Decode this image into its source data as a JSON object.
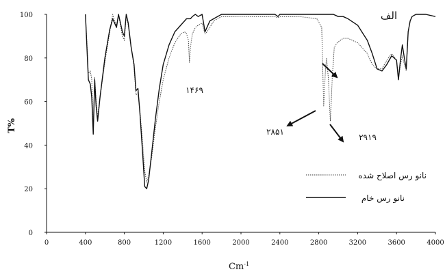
{
  "chart_data": {
    "type": "line",
    "panel_label": "الف",
    "xlabel": "Cm",
    "xlabel_sup": "-1",
    "ylabel": "T%",
    "xlim": [
      0,
      4000
    ],
    "ylim": [
      0,
      100
    ],
    "x_ticks": [
      0,
      400,
      800,
      1200,
      1600,
      2000,
      2400,
      2800,
      3200,
      3600,
      4000
    ],
    "y_ticks": [
      0,
      20,
      40,
      60,
      80,
      100
    ],
    "grid": false,
    "legend_position": "right",
    "series": [
      {
        "name": "نانو رس اصلاح شده",
        "style": "dotted",
        "x": [
          400,
          430,
          450,
          465,
          480,
          495,
          510,
          525,
          550,
          600,
          650,
          680,
          700,
          720,
          740,
          780,
          800,
          820,
          840,
          870,
          900,
          920,
          940,
          960,
          990,
          1010,
          1030,
          1050,
          1080,
          1120,
          1160,
          1200,
          1260,
          1320,
          1380,
          1420,
          1440,
          1460,
          1470,
          1480,
          1500,
          1530,
          1560,
          1600,
          1630,
          1650,
          1680,
          1720,
          1800,
          2000,
          2200,
          2350,
          2380,
          2400,
          2600,
          2780,
          2830,
          2851,
          2870,
          2880,
          2900,
          2919,
          2940,
          2960,
          2990,
          3050,
          3100,
          3200,
          3300,
          3350,
          3400,
          3450,
          3500,
          3550,
          3600,
          3620,
          3640,
          3660,
          3680,
          3700,
          3720,
          3740,
          3760,
          3800,
          3900,
          4000
        ],
        "y": [
          100,
          73,
          74,
          70,
          47,
          71,
          60,
          53,
          62,
          78,
          92,
          100,
          97,
          95,
          100,
          90,
          88,
          100,
          95,
          85,
          76,
          63,
          64,
          56,
          40,
          28,
          23,
          26,
          34,
          48,
          60,
          70,
          80,
          87,
          91,
          92,
          91,
          88,
          78,
          85,
          91,
          94,
          95,
          96,
          91,
          92,
          94,
          97,
          99,
          99,
          99,
          99,
          98.4,
          99,
          99,
          98,
          94,
          58,
          75,
          80,
          70,
          51,
          72,
          85,
          87,
          89,
          89,
          87,
          82,
          77,
          75,
          75,
          79,
          82,
          79,
          71,
          77,
          81,
          77,
          74,
          92,
          97,
          99,
          100,
          100,
          99
        ]
      },
      {
        "name": "نانو رس خام",
        "style": "solid",
        "x": [
          400,
          430,
          450,
          465,
          480,
          495,
          510,
          525,
          550,
          600,
          650,
          680,
          700,
          720,
          740,
          780,
          800,
          820,
          840,
          870,
          900,
          920,
          940,
          960,
          990,
          1010,
          1030,
          1050,
          1080,
          1120,
          1160,
          1200,
          1260,
          1320,
          1380,
          1420,
          1440,
          1460,
          1480,
          1500,
          1530,
          1560,
          1600,
          1630,
          1650,
          1680,
          1720,
          1800,
          2000,
          2200,
          2350,
          2380,
          2400,
          2600,
          2800,
          2850,
          2900,
          2950,
          3000,
          3050,
          3100,
          3200,
          3300,
          3350,
          3400,
          3450,
          3500,
          3550,
          3600,
          3620,
          3640,
          3660,
          3680,
          3700,
          3720,
          3740,
          3760,
          3800,
          3900,
          4000
        ],
        "y": [
          100,
          70,
          68,
          62,
          45,
          70,
          58,
          51,
          62,
          80,
          93,
          98,
          96,
          94,
          100,
          92,
          90,
          100,
          96,
          85,
          77,
          65,
          66,
          55,
          35,
          21,
          20,
          24,
          36,
          52,
          66,
          77,
          86,
          92,
          95,
          97,
          98,
          98,
          98,
          99,
          100,
          99,
          100,
          92,
          94,
          97,
          98,
          100,
          100,
          100,
          100,
          99,
          100,
          100,
          100,
          100,
          100,
          100,
          99,
          99,
          98,
          95,
          88,
          82,
          75,
          74,
          77,
          81,
          79,
          70,
          79,
          86,
          80,
          75,
          92,
          97,
          99,
          100,
          100,
          99
        ]
      }
    ],
    "annotations": [
      {
        "text": "۱۴۶۹"
      },
      {
        "text": "۲۸۵۱"
      },
      {
        "text": "۲۹۱۹"
      }
    ]
  }
}
